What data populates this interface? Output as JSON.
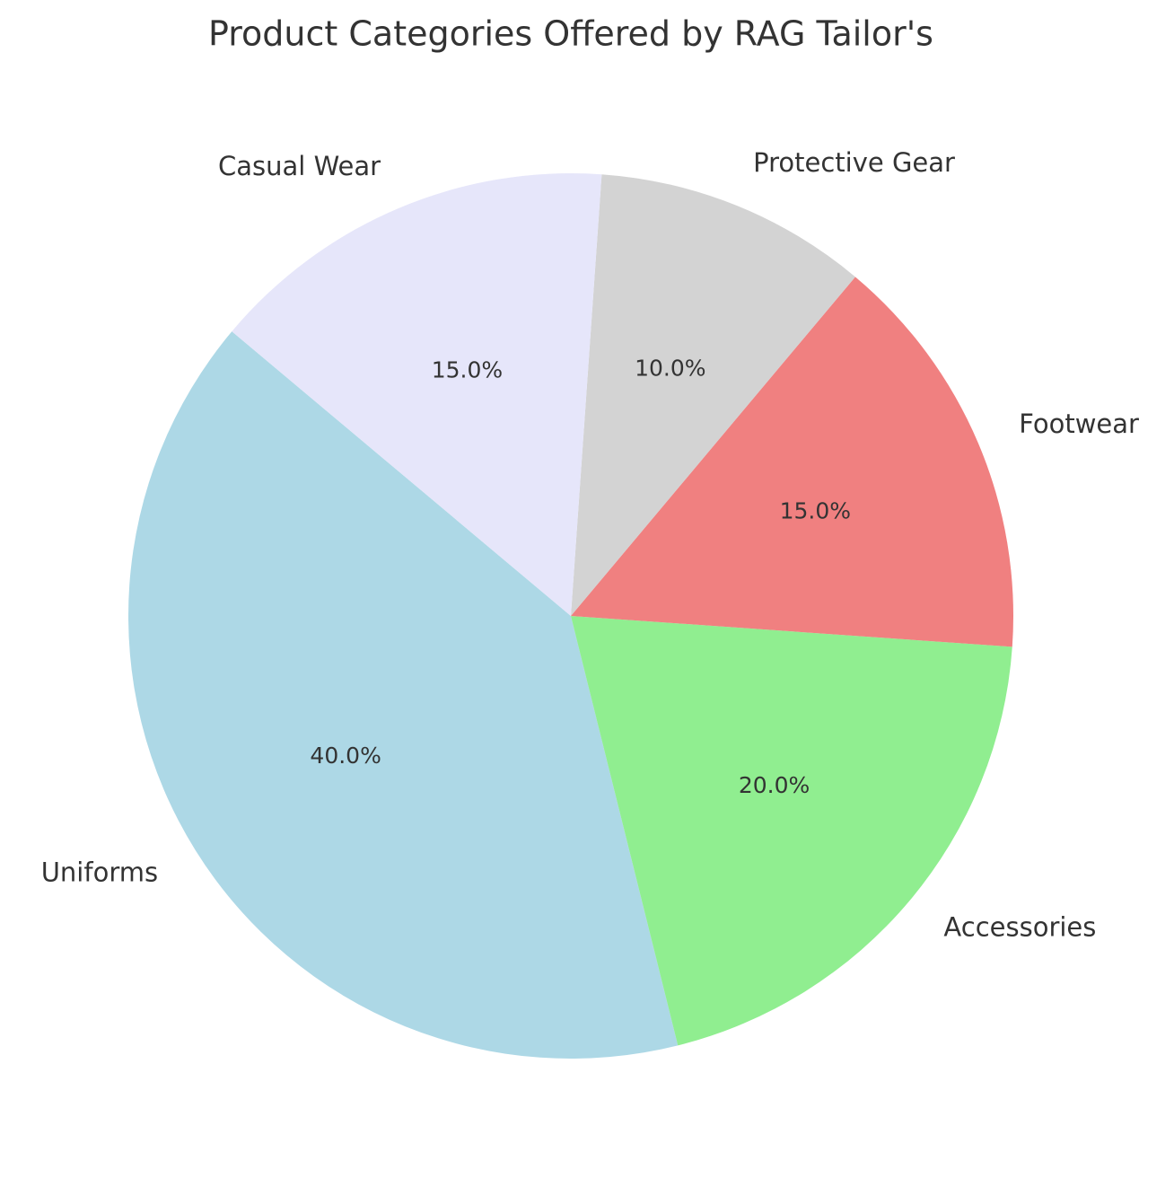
{
  "chart_data": {
    "type": "pie",
    "title": "Product Categories Offered by RAG Tailor's",
    "categories": [
      "Uniforms",
      "Accessories",
      "Footwear",
      "Protective Gear",
      "Casual Wear"
    ],
    "values": [
      40,
      20,
      15,
      10,
      15
    ],
    "value_labels": [
      "40.0%",
      "20.0%",
      "15.0%",
      "10.0%",
      "15.0%"
    ],
    "colors": [
      "#add8e6",
      "#90ee90",
      "#f08080",
      "#d3d3d3",
      "#e6e6fa"
    ],
    "start_angle": 140,
    "counterclockwise": true
  }
}
